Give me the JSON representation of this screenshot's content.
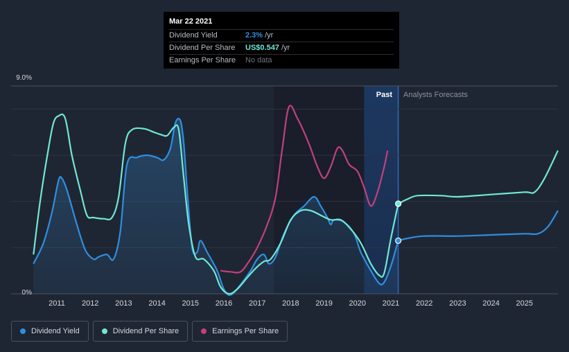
{
  "tooltip": {
    "date": "Mar 22 2021",
    "rows": [
      {
        "name": "Dividend Yield",
        "value": "2.3%",
        "unit": "/yr",
        "color": "#2f8fe0"
      },
      {
        "name": "Dividend Per Share",
        "value": "US$0.547",
        "unit": "/yr",
        "color": "#71e7d6"
      },
      {
        "name": "Earnings Per Share",
        "value": "No data",
        "unit": "",
        "color": "#6f7580"
      }
    ]
  },
  "legend": [
    {
      "label": "Dividend Yield",
      "color": "#2f8fe0"
    },
    {
      "label": "Dividend Per Share",
      "color": "#71e7d6"
    },
    {
      "label": "Earnings Per Share",
      "color": "#c2407f"
    }
  ],
  "segments": {
    "past": "Past",
    "forecast": "Analysts Forecasts"
  },
  "chart_data": {
    "type": "line",
    "ylim": [
      0,
      9
    ],
    "y_tick_labels": [
      {
        "value": 9,
        "label": "9.0%"
      },
      {
        "value": 0,
        "label": "0%"
      }
    ],
    "x_ticks": [
      2011,
      2012,
      2013,
      2014,
      2015,
      2016,
      2017,
      2018,
      2019,
      2020,
      2021,
      2022,
      2023,
      2024,
      2025
    ],
    "xlim": [
      2010.3,
      2026.0
    ],
    "past_end": 2021.22,
    "highlight_start": 2020.2,
    "series": [
      {
        "name": "Dividend Yield",
        "color": "#2f8fe0",
        "points": [
          [
            2010.3,
            1.3
          ],
          [
            2010.6,
            2.2
          ],
          [
            2010.85,
            3.5
          ],
          [
            2011.05,
            4.9
          ],
          [
            2011.15,
            5.0
          ],
          [
            2011.3,
            4.5
          ],
          [
            2011.6,
            3.0
          ],
          [
            2011.85,
            1.9
          ],
          [
            2012.1,
            1.5
          ],
          [
            2012.25,
            1.6
          ],
          [
            2012.5,
            1.7
          ],
          [
            2012.7,
            1.5
          ],
          [
            2012.9,
            2.7
          ],
          [
            2013.1,
            5.6
          ],
          [
            2013.4,
            5.9
          ],
          [
            2013.7,
            6.0
          ],
          [
            2014.0,
            5.9
          ],
          [
            2014.2,
            5.8
          ],
          [
            2014.4,
            6.3
          ],
          [
            2014.55,
            7.4
          ],
          [
            2014.7,
            7.5
          ],
          [
            2014.8,
            6.5
          ],
          [
            2014.9,
            4.5
          ],
          [
            2015.05,
            2.0
          ],
          [
            2015.2,
            1.8
          ],
          [
            2015.3,
            2.3
          ],
          [
            2015.5,
            1.8
          ],
          [
            2015.8,
            1.0
          ],
          [
            2016.0,
            0.2
          ],
          [
            2016.2,
            -0.05
          ],
          [
            2016.5,
            0.4
          ],
          [
            2016.8,
            1.0
          ],
          [
            2017.0,
            1.5
          ],
          [
            2017.2,
            1.7
          ],
          [
            2017.35,
            1.3
          ],
          [
            2017.55,
            1.6
          ],
          [
            2017.8,
            2.6
          ],
          [
            2018.1,
            3.4
          ],
          [
            2018.4,
            3.8
          ],
          [
            2018.7,
            4.2
          ],
          [
            2018.9,
            3.8
          ],
          [
            2019.1,
            3.3
          ],
          [
            2019.2,
            3.0
          ],
          [
            2019.3,
            3.2
          ],
          [
            2019.6,
            3.1
          ],
          [
            2019.9,
            2.6
          ],
          [
            2020.1,
            1.8
          ],
          [
            2020.4,
            1.0
          ],
          [
            2020.65,
            0.45
          ],
          [
            2020.8,
            0.5
          ],
          [
            2021.0,
            1.2
          ],
          [
            2021.22,
            2.3
          ],
          [
            2021.5,
            2.4
          ],
          [
            2022.0,
            2.5
          ],
          [
            2023.0,
            2.5
          ],
          [
            2024.0,
            2.55
          ],
          [
            2025.0,
            2.6
          ],
          [
            2025.4,
            2.6
          ],
          [
            2025.7,
            2.9
          ],
          [
            2026.0,
            3.6
          ]
        ]
      },
      {
        "name": "Dividend Per Share",
        "color": "#71e7d6",
        "points": [
          [
            2010.3,
            1.7
          ],
          [
            2010.5,
            4.0
          ],
          [
            2010.75,
            6.3
          ],
          [
            2010.9,
            7.4
          ],
          [
            2011.05,
            7.7
          ],
          [
            2011.25,
            7.6
          ],
          [
            2011.45,
            6.0
          ],
          [
            2011.7,
            4.5
          ],
          [
            2011.9,
            3.4
          ],
          [
            2012.1,
            3.3
          ],
          [
            2012.4,
            3.25
          ],
          [
            2012.65,
            3.3
          ],
          [
            2012.85,
            4.2
          ],
          [
            2013.05,
            6.5
          ],
          [
            2013.25,
            7.1
          ],
          [
            2013.6,
            7.15
          ],
          [
            2013.9,
            7.0
          ],
          [
            2014.1,
            6.9
          ],
          [
            2014.3,
            6.85
          ],
          [
            2014.5,
            7.2
          ],
          [
            2014.65,
            7.1
          ],
          [
            2014.8,
            5.0
          ],
          [
            2014.95,
            3.0
          ],
          [
            2015.15,
            1.6
          ],
          [
            2015.4,
            1.5
          ],
          [
            2015.7,
            1.0
          ],
          [
            2015.9,
            0.3
          ],
          [
            2016.15,
            0.0
          ],
          [
            2016.4,
            0.2
          ],
          [
            2016.7,
            0.7
          ],
          [
            2016.95,
            1.1
          ],
          [
            2017.2,
            1.4
          ],
          [
            2017.4,
            1.5
          ],
          [
            2017.7,
            2.2
          ],
          [
            2018.0,
            3.2
          ],
          [
            2018.3,
            3.6
          ],
          [
            2018.6,
            3.6
          ],
          [
            2018.9,
            3.4
          ],
          [
            2019.2,
            3.2
          ],
          [
            2019.5,
            3.2
          ],
          [
            2019.8,
            2.8
          ],
          [
            2020.1,
            2.2
          ],
          [
            2020.4,
            1.3
          ],
          [
            2020.65,
            0.8
          ],
          [
            2020.8,
            0.9
          ],
          [
            2021.0,
            2.4
          ],
          [
            2021.22,
            3.9
          ],
          [
            2021.5,
            4.1
          ],
          [
            2021.8,
            4.25
          ],
          [
            2022.5,
            4.25
          ],
          [
            2023.0,
            4.2
          ],
          [
            2024.0,
            4.3
          ],
          [
            2025.0,
            4.4
          ],
          [
            2025.3,
            4.4
          ],
          [
            2025.6,
            5.0
          ],
          [
            2026.0,
            6.2
          ]
        ]
      },
      {
        "name": "Earnings Per Share",
        "color": "#c2407f",
        "points": [
          [
            2015.9,
            1.0
          ],
          [
            2016.2,
            0.95
          ],
          [
            2016.5,
            0.95
          ],
          [
            2016.75,
            1.4
          ],
          [
            2017.0,
            2.0
          ],
          [
            2017.3,
            3.0
          ],
          [
            2017.55,
            4.2
          ],
          [
            2017.75,
            6.3
          ],
          [
            2017.95,
            8.1
          ],
          [
            2018.2,
            7.6
          ],
          [
            2018.4,
            7.0
          ],
          [
            2018.6,
            6.3
          ],
          [
            2018.8,
            5.5
          ],
          [
            2019.0,
            5.0
          ],
          [
            2019.2,
            5.5
          ],
          [
            2019.4,
            6.3
          ],
          [
            2019.55,
            6.2
          ],
          [
            2019.75,
            5.6
          ],
          [
            2020.0,
            5.3
          ],
          [
            2020.2,
            4.6
          ],
          [
            2020.4,
            3.8
          ],
          [
            2020.6,
            4.4
          ],
          [
            2020.8,
            5.5
          ],
          [
            2020.9,
            6.2
          ]
        ]
      }
    ],
    "tooltip_x": 2021.22
  }
}
